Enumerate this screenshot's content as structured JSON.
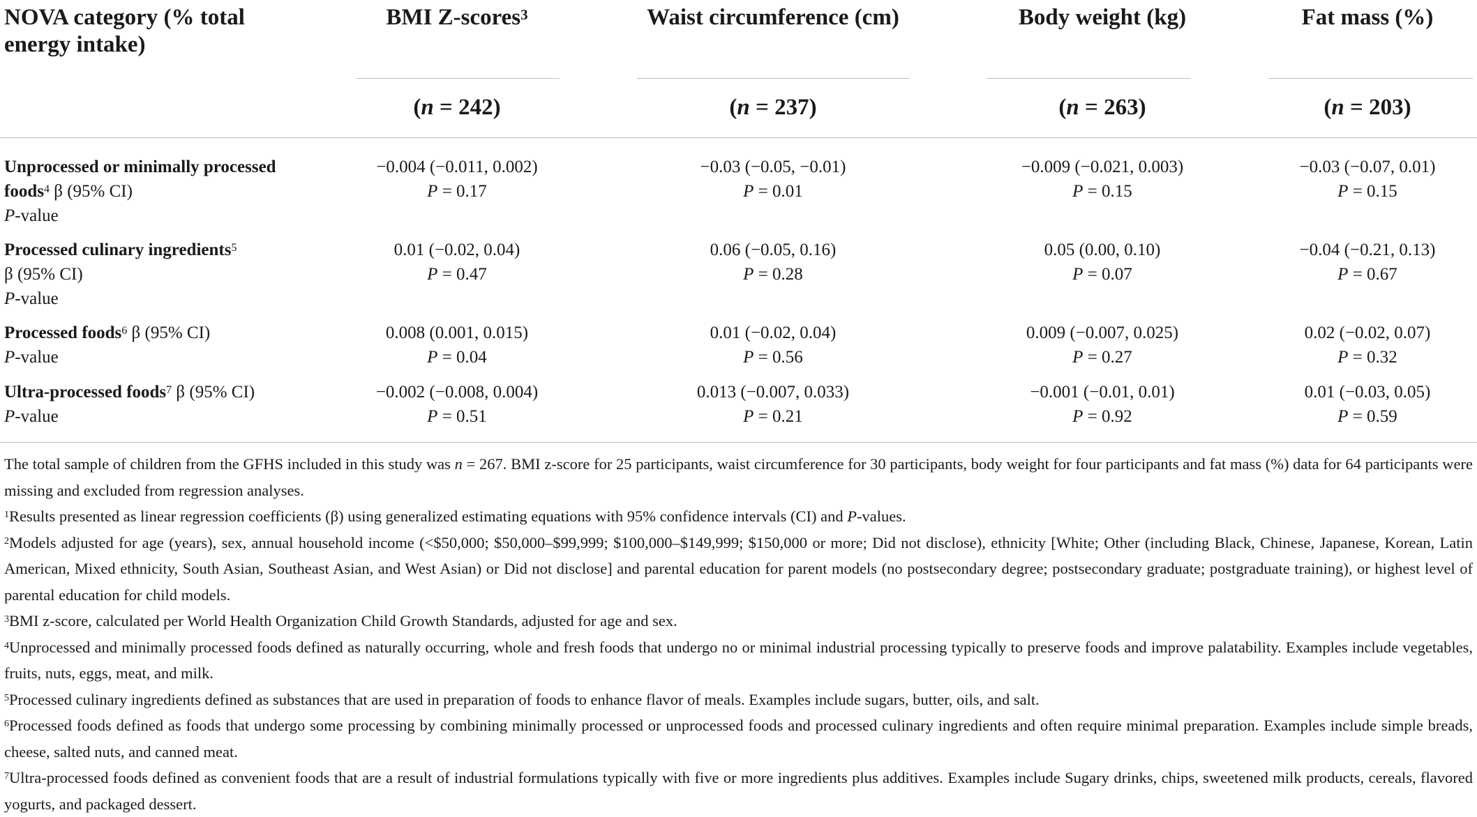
{
  "header": {
    "first_col": "NOVA category (% total energy intake)",
    "columns": [
      {
        "label": "BMI Z-scores",
        "sup": "3",
        "n_prefix": "n",
        "n_text": " = 242"
      },
      {
        "label": "Waist circumference (cm)",
        "sup": "",
        "n_prefix": "n",
        "n_text": " = 237"
      },
      {
        "label": "Body weight (kg)",
        "sup": "",
        "n_prefix": "n",
        "n_text": " = 263"
      },
      {
        "label": "Fat mass (%)",
        "sup": "",
        "n_prefix": "n",
        "n_text": " = 203"
      }
    ]
  },
  "rows": [
    {
      "name_bold": "Unprocessed or minimally processed foods",
      "name_sup": "4",
      "beta_label": " β (95% CI)",
      "p_label_italic": "P",
      "p_label_rest": "-value",
      "values": [
        {
          "beta": "−0.004 (−0.011, 0.002)",
          "p": " = 0.17"
        },
        {
          "beta": "−0.03 (−0.05, −0.01)",
          "p": " = 0.01"
        },
        {
          "beta": "−0.009 (−0.021, 0.003)",
          "p": " = 0.15"
        },
        {
          "beta": "−0.03 (−0.07, 0.01)",
          "p": " = 0.15"
        }
      ]
    },
    {
      "name_bold": "Processed culinary ingredients",
      "name_sup": "5",
      "beta_label": "β (95% CI)",
      "p_label_italic": "P",
      "p_label_rest": "-value",
      "values": [
        {
          "beta": "0.01 (−0.02, 0.04)",
          "p": " = 0.47"
        },
        {
          "beta": "0.06 (−0.05, 0.16)",
          "p": " = 0.28"
        },
        {
          "beta": "0.05 (0.00, 0.10)",
          "p": " = 0.07"
        },
        {
          "beta": "−0.04 (−0.21, 0.13)",
          "p": " = 0.67"
        }
      ]
    },
    {
      "name_bold": "Processed foods",
      "name_sup": "6",
      "beta_label": " β (95% CI)",
      "p_label_italic": "P",
      "p_label_rest": "-value",
      "values": [
        {
          "beta": "0.008 (0.001, 0.015)",
          "p": " = 0.04"
        },
        {
          "beta": "0.01 (−0.02, 0.04)",
          "p": " = 0.56"
        },
        {
          "beta": "0.009 (−0.007, 0.025)",
          "p": " = 0.27"
        },
        {
          "beta": "0.02 (−0.02, 0.07)",
          "p": " = 0.32"
        }
      ]
    },
    {
      "name_bold": "Ultra-processed foods",
      "name_sup": "7",
      "beta_label": " β (95% CI)",
      "p_label_italic": "P",
      "p_label_rest": "-value",
      "values": [
        {
          "beta": "−0.002 (−0.008, 0.004)",
          "p": " = 0.51"
        },
        {
          "beta": "0.013 (−0.007, 0.033)",
          "p": " = 0.21"
        },
        {
          "beta": "−0.001 (−0.01, 0.01)",
          "p": " = 0.92"
        },
        {
          "beta": "0.01 (−0.03, 0.05)",
          "p": " = 0.59"
        }
      ]
    }
  ],
  "p_symbol": "P",
  "notes": {
    "sample_a": "The total sample of children from the GFHS included in this study was ",
    "sample_n": "n",
    "sample_b": " = 267. BMI z-score for 25 participants, waist circumference for 30 participants, body weight for four participants and fat mass (%) data for 64 participants were missing and excluded from regression analyses.",
    "fn1_sup": "1",
    "fn1_a": "Results presented as linear regression coefficients (β) using generalized estimating equations with 95% confidence intervals (CI) and ",
    "fn1_p": "P",
    "fn1_b": "-values.",
    "fn2_sup": "2",
    "fn2": "Models adjusted for age (years), sex, annual household income (<$50,000; $50,000–$99,999; $100,000–$149,999; $150,000 or more; Did not disclose), ethnicity [White; Other (including Black, Chinese, Japanese, Korean, Latin American, Mixed ethnicity, South Asian, Southeast Asian, and West Asian) or Did not disclose] and parental education for parent models (no postsecondary degree; postsecondary graduate; postgraduate training), or highest level of parental education for child models.",
    "fn3_sup": "3",
    "fn3": "BMI z-score, calculated per World Health Organization Child Growth Standards, adjusted for age and sex.",
    "fn4_sup": "4",
    "fn4": "Unprocessed and minimally processed foods defined as naturally occurring, whole and fresh foods that undergo no or minimal industrial processing typically to preserve foods and improve palatability. Examples include vegetables, fruits, nuts, eggs, meat, and milk.",
    "fn5_sup": "5",
    "fn5": "Processed culinary ingredients defined as substances that are used in preparation of foods to enhance flavor of meals. Examples include sugars, butter, oils, and salt.",
    "fn6_sup": "6",
    "fn6": "Processed foods defined as foods that undergo some processing by combining minimally processed or unprocessed foods and processed culinary ingredients and often require minimal preparation. Examples include simple breads, cheese, salted nuts, and canned meat.",
    "fn7_sup": "7",
    "fn7": "Ultra-processed foods defined as convenient foods that are a result of industrial formulations typically with five or more ingredients plus additives. Examples include Sugary drinks, chips, sweetened milk products, cereals, flavored yogurts, and packaged dessert."
  }
}
